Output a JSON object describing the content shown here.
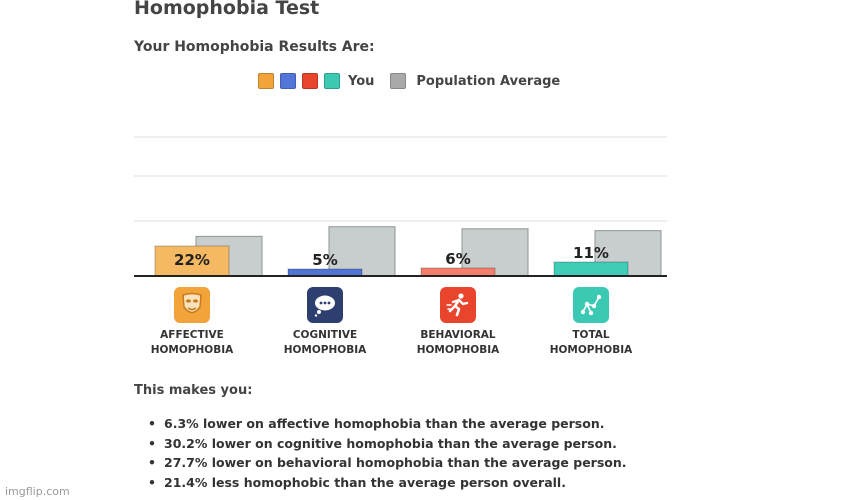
{
  "title": "Homophobia Test",
  "subtitle": "Your Homophobia Results Are:",
  "legend": {
    "you_label": "You",
    "population_label": "Population Average",
    "you_colors": [
      "#f2a43a",
      "#5576d9",
      "#e8452c",
      "#3cc9b4"
    ],
    "population_color": "#a9a9a9"
  },
  "chart_data": {
    "type": "bar",
    "categories": [
      "AFFECTIVE HOMOPHOBIA",
      "COGNITIVE HOMOPHOBIA",
      "BEHAVIORAL HOMOPHOBIA",
      "TOTAL HOMOPHOBIA"
    ],
    "series": [
      {
        "name": "You",
        "values": [
          22,
          5,
          6,
          11
        ],
        "labels": [
          "22%",
          "5%",
          "6%",
          "11%"
        ],
        "colors": [
          "#f5b964",
          "#5073d6",
          "#f57f6c",
          "#40cdb8"
        ]
      },
      {
        "name": "Population Average",
        "values": [
          28.3,
          35.2,
          33.7,
          32.4
        ],
        "color": "#c8cdce"
      }
    ],
    "ylim": [
      0,
      100
    ],
    "grid": true
  },
  "categories_ui": [
    {
      "line1": "AFFECTIVE",
      "line2": "HOMOPHOBIA",
      "icon": "mask-icon",
      "icon_color": "#f2a43a"
    },
    {
      "line1": "COGNITIVE",
      "line2": "HOMOPHOBIA",
      "icon": "thought-bubble-icon",
      "icon_color": "#2c3f6f"
    },
    {
      "line1": "BEHAVIORAL",
      "line2": "HOMOPHOBIA",
      "icon": "running-person-icon",
      "icon_color": "#e8452c"
    },
    {
      "line1": "TOTAL",
      "line2": "HOMOPHOBIA",
      "icon": "network-icon",
      "icon_color": "#3cc9b4"
    }
  ],
  "makes_you": "This makes you:",
  "results": [
    "6.3% lower on affective homophobia than the average person.",
    "30.2% lower on cognitive homophobia than the average person.",
    "27.7% lower on behavioral homophobia than the average person.",
    "21.4% less homophobic than the average person overall."
  ],
  "watermark": "imgflip.com"
}
